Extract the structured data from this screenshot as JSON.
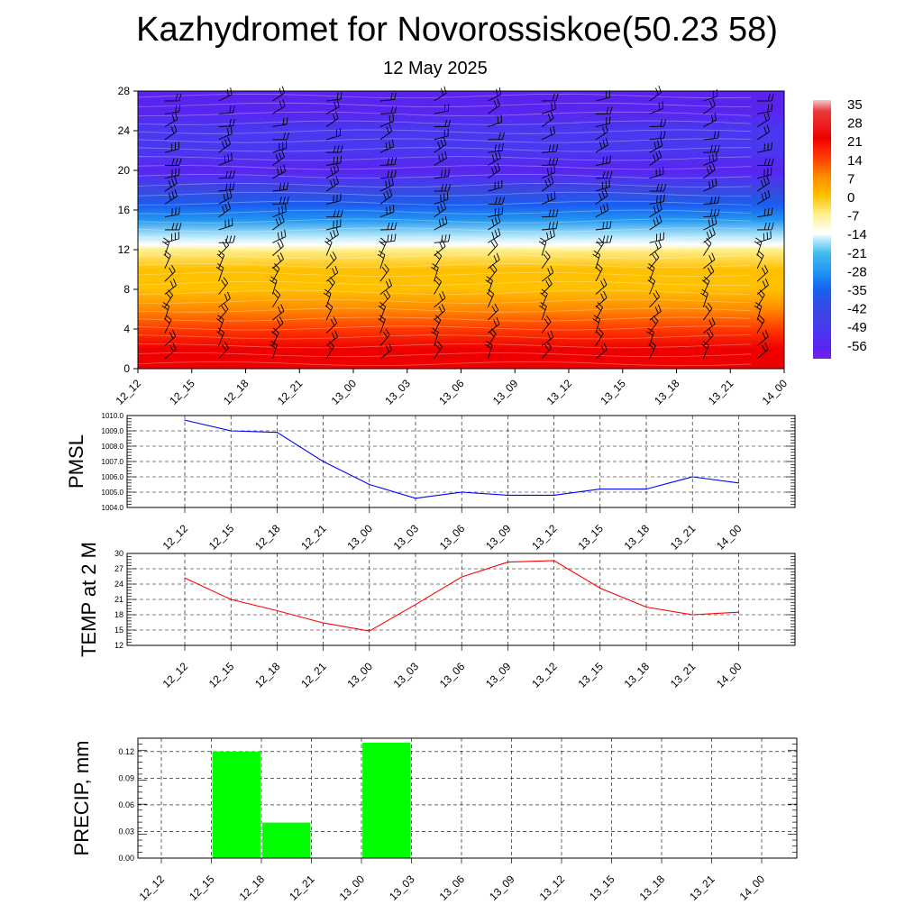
{
  "header": {
    "title": "Kazhydromet for Novorossiskoe(50.23 58)",
    "date": "12 May 2025"
  },
  "times": [
    "12_12",
    "12_15",
    "12_18",
    "12_21",
    "13_00",
    "13_03",
    "13_06",
    "13_09",
    "13_12",
    "13_15",
    "13_18",
    "13_21",
    "14_00"
  ],
  "chart_data": [
    {
      "type": "heatmap",
      "title": "",
      "xlabel": "",
      "ylabel": "",
      "x": [
        "12_12",
        "12_15",
        "12_18",
        "12_21",
        "13_00",
        "13_03",
        "13_06",
        "13_09",
        "13_12",
        "13_15",
        "13_18",
        "13_21",
        "14_00"
      ],
      "ylim": [
        0,
        28
      ],
      "yticks": [
        0,
        4,
        8,
        12,
        16,
        20,
        24,
        28
      ],
      "overlay": "wind-barbs",
      "colorbar": {
        "labels": [
          "35",
          "28",
          "21",
          "14",
          "7",
          "0",
          "-7",
          "-14",
          "-21",
          "-28",
          "-35",
          "-42",
          "-49",
          "-56"
        ],
        "stops": [
          {
            "value": 35,
            "color": "#f4c8c8"
          },
          {
            "value": 31,
            "color": "#e83c3c"
          },
          {
            "value": 21,
            "color": "#ee0000"
          },
          {
            "value": 14,
            "color": "#ff3a00"
          },
          {
            "value": 7,
            "color": "#ff8a00"
          },
          {
            "value": 0,
            "color": "#ffc000"
          },
          {
            "value": -7,
            "color": "#fff090"
          },
          {
            "value": -14,
            "color": "#ffffff"
          },
          {
            "value": -17,
            "color": "#a8e2f8"
          },
          {
            "value": -21,
            "color": "#48bcf0"
          },
          {
            "value": -28,
            "color": "#2196f0"
          },
          {
            "value": -35,
            "color": "#1a5ef0"
          },
          {
            "value": -42,
            "color": "#3a48e0"
          },
          {
            "value": -49,
            "color": "#4838f0"
          },
          {
            "value": -56,
            "color": "#5a24f0"
          },
          {
            "value": -60,
            "color": "#7a20e8"
          }
        ]
      },
      "temperature_profile": [
        {
          "height": 0,
          "value": 24
        },
        {
          "height": 2,
          "value": 22
        },
        {
          "height": 4,
          "value": 17
        },
        {
          "height": 6,
          "value": 10
        },
        {
          "height": 8,
          "value": 3
        },
        {
          "height": 10,
          "value": -2
        },
        {
          "height": 12,
          "value": -9
        },
        {
          "height": 12.5,
          "value": -14
        },
        {
          "height": 13.5,
          "value": -19
        },
        {
          "height": 15,
          "value": -26
        },
        {
          "height": 16.5,
          "value": -33
        },
        {
          "height": 18,
          "value": -42
        },
        {
          "height": 19,
          "value": -52
        },
        {
          "height": 20,
          "value": -57
        },
        {
          "height": 22,
          "value": -49
        },
        {
          "height": 24,
          "value": -47
        },
        {
          "height": 26,
          "value": -55
        },
        {
          "height": 28,
          "value": -58
        }
      ]
    },
    {
      "type": "line",
      "title": "",
      "xlabel": "",
      "ylabel": "PMSL",
      "categories": [
        "12_12",
        "12_15",
        "12_18",
        "12_21",
        "13_00",
        "13_03",
        "13_06",
        "13_09",
        "13_12",
        "13_15",
        "13_18",
        "13_21",
        "14_00"
      ],
      "series": [
        {
          "values": [
            1009.7,
            1009.0,
            1008.9,
            1007.0,
            1005.5,
            1004.6,
            1005.0,
            1004.8,
            1004.8,
            1005.2,
            1005.2,
            1006.0,
            1005.6
          ],
          "color": "#0000ff"
        }
      ],
      "ylim": [
        1004,
        1010
      ],
      "yticks": [
        "1004.0",
        "1005.0",
        "1006.0",
        "1007.0",
        "1008.0",
        "1009.0",
        "1010.0"
      ],
      "grid": true
    },
    {
      "type": "line",
      "title": "",
      "xlabel": "",
      "ylabel": "TEMP at 2 M",
      "categories": [
        "12_12",
        "12_15",
        "12_18",
        "12_21",
        "13_00",
        "13_03",
        "13_06",
        "13_09",
        "13_12",
        "13_15",
        "13_18",
        "13_21",
        "14_00"
      ],
      "series": [
        {
          "values": [
            25.2,
            21.0,
            18.8,
            16.4,
            14.8,
            20.0,
            25.4,
            28.3,
            28.6,
            23.2,
            19.5,
            18.0,
            18.5
          ],
          "color": "#ff0000"
        }
      ],
      "ylim": [
        12,
        30
      ],
      "yticks": [
        "12",
        "15",
        "18",
        "21",
        "24",
        "27",
        "30"
      ],
      "grid": true
    },
    {
      "type": "bar",
      "title": "",
      "xlabel": "",
      "ylabel": "PRECIP, mm",
      "categories": [
        "12_12",
        "12_15",
        "12_18",
        "12_21",
        "13_00",
        "13_03",
        "13_06",
        "13_09",
        "13_12",
        "13_15",
        "13_18",
        "13_21",
        "14_00"
      ],
      "values": [
        0,
        0,
        0.12,
        0.04,
        0,
        0.13,
        0,
        0,
        0,
        0,
        0,
        0,
        0
      ],
      "bar_color": "#00ff00",
      "ylim": [
        0,
        0.135
      ],
      "yticks": [
        "0.00",
        "0.03",
        "0.06",
        "0.09",
        "0.12"
      ],
      "grid": true
    }
  ]
}
